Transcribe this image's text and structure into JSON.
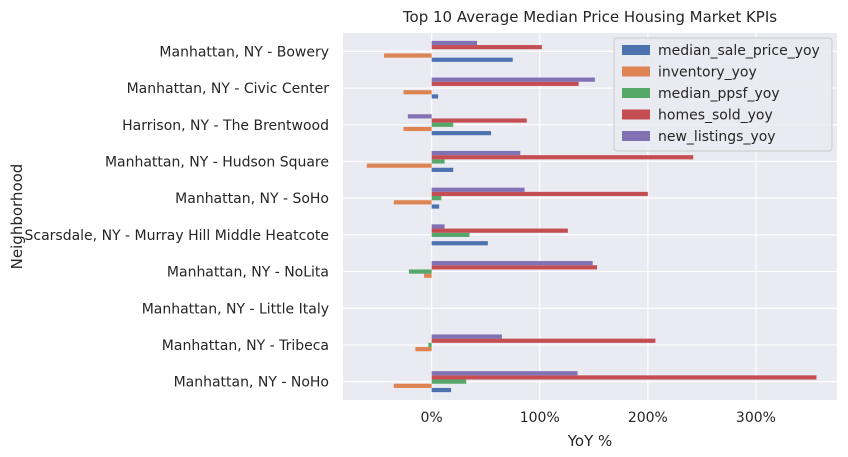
{
  "chart_data": {
    "type": "bar",
    "orientation": "horizontal",
    "title": "Top 10 Average Median Price Housing Market KPIs",
    "xlabel": "YoY %",
    "ylabel": "Neighborhood",
    "xlim": [
      -0.82,
      3.75
    ],
    "x_ticks": [
      0,
      1,
      2,
      3
    ],
    "x_tick_labels": [
      "0%",
      "100%",
      "200%",
      "300%"
    ],
    "grid": true,
    "legend_position": "top-right",
    "categories": [
      "Manhattan, NY - Bowery",
      "Manhattan, NY - Civic Center",
      "Harrison, NY - The Brentwood",
      "Manhattan, NY - Hudson Square",
      "Manhattan, NY - SoHo",
      "Scarsdale, NY - Murray Hill Middle Heatcote",
      "Manhattan, NY - NoLita",
      "Manhattan, NY - Little Italy",
      "Manhattan, NY - Tribeca",
      "Manhattan, NY - NoHo"
    ],
    "series": [
      {
        "name": "median_sale_price_yoy",
        "color": "#4c72b0",
        "values": [
          0.75,
          0.06,
          0.55,
          0.2,
          0.07,
          0.52,
          0.0,
          0.0,
          0.0,
          0.18
        ]
      },
      {
        "name": "inventory_yoy",
        "color": "#dd8452",
        "values": [
          -0.44,
          -0.26,
          -0.26,
          -0.6,
          -0.35,
          0.0,
          -0.07,
          0.0,
          -0.15,
          -0.35
        ]
      },
      {
        "name": "median_ppsf_yoy",
        "color": "#55a868",
        "values": [
          0.0,
          0.0,
          0.2,
          0.12,
          0.09,
          0.35,
          -0.21,
          0.0,
          -0.03,
          0.32
        ]
      },
      {
        "name": "homes_sold_yoy",
        "color": "#c44e52",
        "values": [
          1.02,
          1.36,
          0.88,
          2.42,
          2.0,
          1.26,
          1.53,
          0.0,
          2.07,
          3.56
        ]
      },
      {
        "name": "new_listings_yoy",
        "color": "#8172b3",
        "values": [
          0.42,
          1.51,
          -0.22,
          0.82,
          0.86,
          0.12,
          1.49,
          0.0,
          0.65,
          1.35
        ]
      }
    ]
  }
}
